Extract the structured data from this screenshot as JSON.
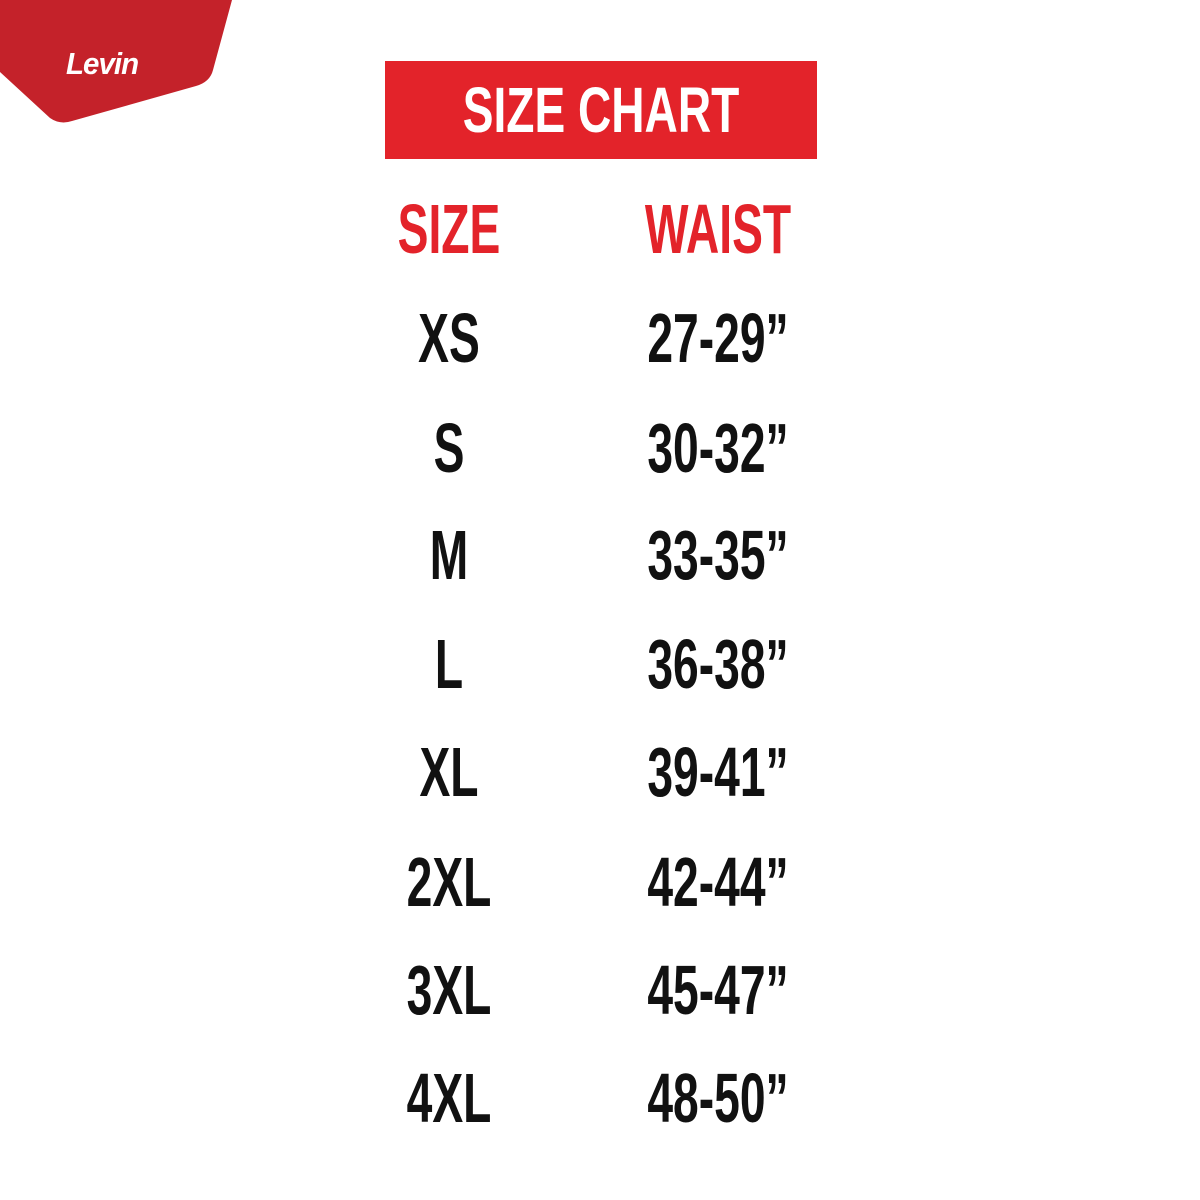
{
  "brand": {
    "name": "Levin",
    "color": "#c4222a"
  },
  "title": "SIZE CHART",
  "accent_color": "#e3232a",
  "table": {
    "headers": [
      "SIZE",
      "WAIST"
    ],
    "rows": [
      [
        "XS",
        "27-29”"
      ],
      [
        "S",
        "30-32”"
      ],
      [
        "M",
        "33-35”"
      ],
      [
        "L",
        "36-38”"
      ],
      [
        "XL",
        "39-41”"
      ],
      [
        "2XL",
        "42-44”"
      ],
      [
        "3XL",
        "45-47”"
      ],
      [
        "4XL",
        "48-50”"
      ]
    ]
  }
}
